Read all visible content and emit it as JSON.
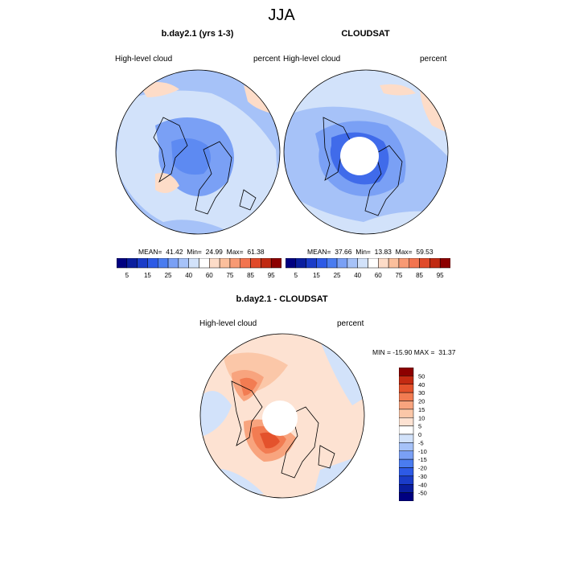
{
  "main_title": "JJA",
  "panels": [
    {
      "title": "b.day2.1 (yrs 1-3)",
      "left_label": "High-level cloud",
      "right_label": "percent",
      "stats": "MEAN=  41.42  Min=  24.99  Max=  61.38"
    },
    {
      "title": "CLOUDSAT",
      "left_label": "High-level cloud",
      "right_label": "percent",
      "stats": "MEAN=  37.66  Min=  13.83  Max=  59.53"
    },
    {
      "title": "b.day2.1 - CLOUDSAT",
      "left_label": "High-level cloud",
      "right_label": "percent",
      "stats": "MIN = -15.90 MAX =  31.37"
    }
  ],
  "colorbar_abs": {
    "colors": [
      "#000080",
      "#0a1e9e",
      "#1a3cc8",
      "#2d5ae6",
      "#4a7cf0",
      "#7aa0f5",
      "#a6c2f8",
      "#d2e2fa",
      "#ffffff",
      "#fddcc8",
      "#fbbf9c",
      "#f89a74",
      "#f2744f",
      "#e04a2a",
      "#c02a12",
      "#8c0000"
    ],
    "labels": [
      "5",
      "15",
      "25",
      "40",
      "60",
      "75",
      "85",
      "95"
    ]
  },
  "colorbar_diff": {
    "colors": [
      "#000080",
      "#0a1e9e",
      "#1a3cc8",
      "#2d5ae6",
      "#4a7cf0",
      "#7aa0f5",
      "#a6c2f8",
      "#d2e2fa",
      "#ffffff",
      "#fde2d2",
      "#fbc7a8",
      "#f8a47e",
      "#f27c52",
      "#e4522c",
      "#c42a12",
      "#8c0000"
    ],
    "labels": [
      "50",
      "40",
      "30",
      "20",
      "15",
      "10",
      "5",
      "0",
      "-5",
      "-10",
      "-15",
      "-20",
      "-30",
      "-40",
      "-50"
    ]
  }
}
